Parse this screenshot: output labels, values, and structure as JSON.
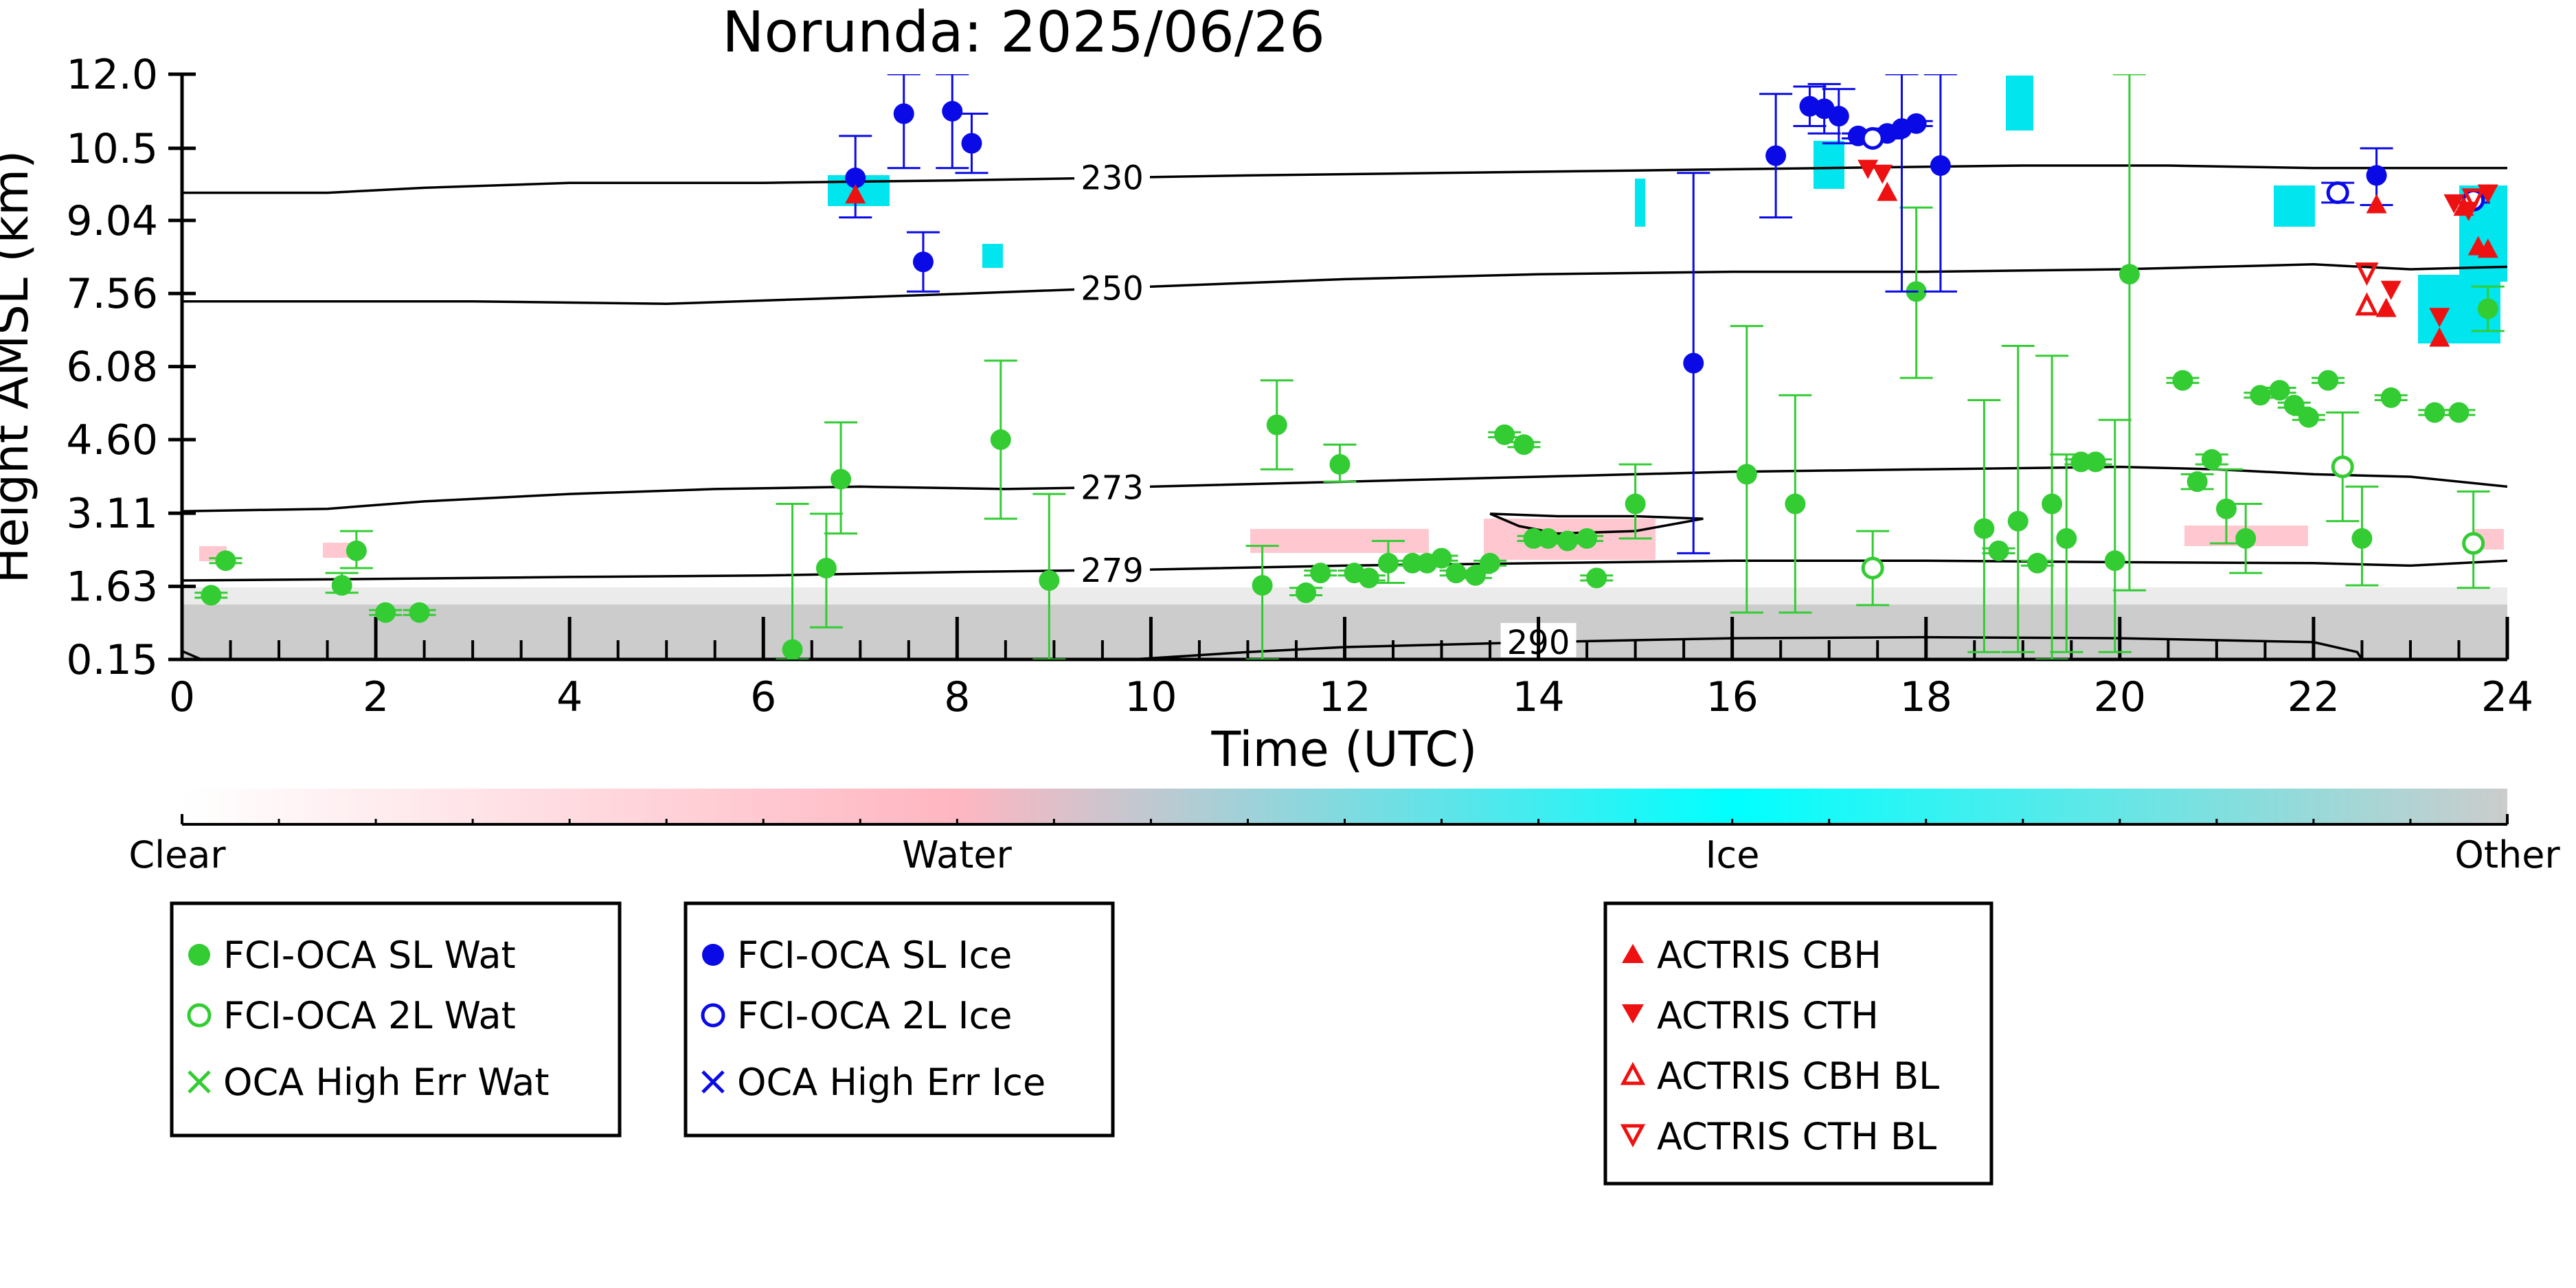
{
  "chart_data": {
    "type": "scatter",
    "title": "Norunda: 2025/06/26",
    "xlabel": "Time (UTC)",
    "ylabel": "Height AMSL (km)",
    "xlim": [
      0,
      24
    ],
    "ylim": [
      0.15,
      12.0
    ],
    "xticks": [
      "0",
      "2",
      "4",
      "6",
      "8",
      "10",
      "12",
      "14",
      "16",
      "18",
      "20",
      "22",
      "24"
    ],
    "yticks": [
      "0.15",
      "1.63",
      "3.11",
      "4.60",
      "6.08",
      "7.56",
      "9.04",
      "10.5",
      "12.0"
    ],
    "colorbar": {
      "labels": [
        "Clear",
        "Water",
        "Ice",
        "Other"
      ],
      "colors": [
        "#ffffff",
        "#ffb6c1",
        "#00ffff",
        "#cccccc"
      ]
    },
    "contours": [
      {
        "label": "230",
        "points": [
          [
            0,
            9.6
          ],
          [
            1.5,
            9.6
          ],
          [
            2.5,
            9.7
          ],
          [
            4,
            9.8
          ],
          [
            6,
            9.8
          ],
          [
            8,
            9.85
          ],
          [
            9.5,
            9.9
          ],
          [
            11,
            9.95
          ],
          [
            13,
            10.0
          ],
          [
            15,
            10.05
          ],
          [
            17,
            10.1
          ],
          [
            19,
            10.15
          ],
          [
            20.5,
            10.15
          ],
          [
            22,
            10.1
          ],
          [
            24,
            10.1
          ]
        ]
      },
      {
        "label": "250",
        "points": [
          [
            0,
            7.4
          ],
          [
            3,
            7.4
          ],
          [
            5,
            7.35
          ],
          [
            6.5,
            7.45
          ],
          [
            8,
            7.55
          ],
          [
            10,
            7.7
          ],
          [
            12,
            7.85
          ],
          [
            14,
            7.95
          ],
          [
            16,
            8.0
          ],
          [
            18,
            8.0
          ],
          [
            20,
            8.05
          ],
          [
            21,
            8.1
          ],
          [
            22,
            8.15
          ],
          [
            23,
            8.05
          ],
          [
            24,
            8.1
          ]
        ]
      },
      {
        "label": "273",
        "points": [
          [
            0,
            3.15
          ],
          [
            1.5,
            3.2
          ],
          [
            2.5,
            3.35
          ],
          [
            4,
            3.5
          ],
          [
            5.5,
            3.6
          ],
          [
            7,
            3.65
          ],
          [
            8.5,
            3.6
          ],
          [
            10,
            3.65
          ],
          [
            12,
            3.75
          ],
          [
            14,
            3.85
          ],
          [
            16,
            3.95
          ],
          [
            18,
            4.0
          ],
          [
            20,
            4.05
          ],
          [
            21,
            4.0
          ],
          [
            22,
            3.9
          ],
          [
            23,
            3.85
          ],
          [
            24,
            3.65
          ]
        ]
      },
      {
        "label": "279",
        "points": [
          [
            0,
            1.75
          ],
          [
            2,
            1.78
          ],
          [
            4,
            1.82
          ],
          [
            6,
            1.85
          ],
          [
            8,
            1.92
          ],
          [
            10,
            1.97
          ],
          [
            12,
            2.05
          ],
          [
            14,
            2.1
          ],
          [
            16,
            2.15
          ],
          [
            18,
            2.15
          ],
          [
            20,
            2.12
          ],
          [
            22,
            2.1
          ],
          [
            23,
            2.05
          ],
          [
            24,
            2.15
          ]
        ]
      },
      {
        "label": "290",
        "points": [
          [
            0,
            0.32
          ],
          [
            0.2,
            0.15
          ],
          [
            9.8,
            0.15
          ],
          [
            11,
            0.3
          ],
          [
            12,
            0.4
          ],
          [
            14,
            0.5
          ],
          [
            16,
            0.58
          ],
          [
            18,
            0.6
          ],
          [
            20,
            0.58
          ],
          [
            22,
            0.5
          ],
          [
            22.45,
            0.3
          ],
          [
            22.5,
            0.15
          ]
        ]
      },
      {
        "label": "",
        "points": [
          [
            13.5,
            3.1
          ],
          [
            14.2,
            3.05
          ],
          [
            15,
            3.05
          ],
          [
            15.7,
            3.0
          ],
          [
            15,
            2.75
          ],
          [
            14.2,
            2.7
          ],
          [
            13.8,
            2.85
          ],
          [
            13.5,
            3.1
          ]
        ]
      }
    ],
    "series": [
      {
        "name": "FCI-OCA SL Wat",
        "color": "#33cc33",
        "marker": "filled-circle",
        "points": [
          {
            "x": 0.3,
            "y": 1.45,
            "ylo": 1.4,
            "yhi": 1.5
          },
          {
            "x": 0.45,
            "y": 2.15,
            "ylo": 2.1,
            "yhi": 2.2
          },
          {
            "x": 1.65,
            "y": 1.65,
            "ylo": 1.5,
            "yhi": 1.9
          },
          {
            "x": 1.8,
            "y": 2.35,
            "ylo": 2.0,
            "yhi": 2.75
          },
          {
            "x": 2.1,
            "y": 1.1,
            "ylo": 1.05,
            "yhi": 1.15
          },
          {
            "x": 2.45,
            "y": 1.1,
            "ylo": 1.05,
            "yhi": 1.15
          },
          {
            "x": 6.3,
            "y": 0.35,
            "ylo": 0.15,
            "yhi": 3.3
          },
          {
            "x": 6.65,
            "y": 2.0,
            "ylo": 0.8,
            "yhi": 3.1
          },
          {
            "x": 6.8,
            "y": 3.8,
            "ylo": 2.7,
            "yhi": 4.95
          },
          {
            "x": 8.45,
            "y": 4.6,
            "ylo": 3.0,
            "yhi": 6.2
          },
          {
            "x": 8.95,
            "y": 1.75,
            "ylo": 0.15,
            "yhi": 3.5
          },
          {
            "x": 11.15,
            "y": 1.65,
            "ylo": 0.15,
            "yhi": 2.45
          },
          {
            "x": 11.3,
            "y": 4.9,
            "ylo": 4.0,
            "yhi": 5.8
          },
          {
            "x": 11.6,
            "y": 1.5,
            "ylo": 1.45,
            "yhi": 1.6
          },
          {
            "x": 11.75,
            "y": 1.9,
            "ylo": 1.85,
            "yhi": 1.95
          },
          {
            "x": 11.95,
            "y": 4.1,
            "ylo": 3.75,
            "yhi": 4.5
          },
          {
            "x": 12.1,
            "y": 1.9,
            "ylo": 1.85,
            "yhi": 1.95
          },
          {
            "x": 12.25,
            "y": 1.8,
            "ylo": 1.75,
            "yhi": 1.85
          },
          {
            "x": 12.45,
            "y": 2.1,
            "ylo": 1.7,
            "yhi": 2.55
          },
          {
            "x": 12.7,
            "y": 2.1,
            "ylo": 2.05,
            "yhi": 2.15
          },
          {
            "x": 12.85,
            "y": 2.1,
            "ylo": 2.05,
            "yhi": 2.15
          },
          {
            "x": 13.0,
            "y": 2.2,
            "ylo": 2.15,
            "yhi": 2.25
          },
          {
            "x": 13.15,
            "y": 1.9,
            "ylo": 1.85,
            "yhi": 1.95
          },
          {
            "x": 13.35,
            "y": 1.85,
            "ylo": 1.8,
            "yhi": 1.9
          },
          {
            "x": 13.5,
            "y": 2.1,
            "ylo": 2.05,
            "yhi": 2.15
          },
          {
            "x": 13.65,
            "y": 4.7,
            "ylo": 4.65,
            "yhi": 4.75
          },
          {
            "x": 13.85,
            "y": 4.5,
            "ylo": 4.45,
            "yhi": 4.55
          },
          {
            "x": 13.95,
            "y": 2.6,
            "ylo": 2.55,
            "yhi": 2.65
          },
          {
            "x": 14.1,
            "y": 2.6,
            "ylo": 2.55,
            "yhi": 2.65
          },
          {
            "x": 14.3,
            "y": 2.55,
            "ylo": 2.5,
            "yhi": 2.6
          },
          {
            "x": 14.5,
            "y": 2.6,
            "ylo": 2.55,
            "yhi": 2.65
          },
          {
            "x": 14.6,
            "y": 1.8,
            "ylo": 1.75,
            "yhi": 1.85
          },
          {
            "x": 15.0,
            "y": 3.3,
            "ylo": 2.6,
            "yhi": 4.1
          },
          {
            "x": 16.15,
            "y": 3.9,
            "ylo": 1.1,
            "yhi": 6.9
          },
          {
            "x": 16.65,
            "y": 3.3,
            "ylo": 1.1,
            "yhi": 5.5
          },
          {
            "x": 17.9,
            "y": 7.6,
            "ylo": 5.85,
            "yhi": 9.3
          },
          {
            "x": 18.6,
            "y": 2.8,
            "ylo": 0.3,
            "yhi": 5.4
          },
          {
            "x": 18.75,
            "y": 2.35,
            "ylo": 2.3,
            "yhi": 2.4
          },
          {
            "x": 18.95,
            "y": 2.95,
            "ylo": 0.3,
            "yhi": 6.5
          },
          {
            "x": 19.15,
            "y": 2.1,
            "ylo": 2.05,
            "yhi": 2.15
          },
          {
            "x": 19.3,
            "y": 3.3,
            "ylo": 0.15,
            "yhi": 6.3
          },
          {
            "x": 19.45,
            "y": 2.6,
            "ylo": 0.3,
            "yhi": 4.3
          },
          {
            "x": 19.6,
            "y": 4.15,
            "ylo": 4.1,
            "yhi": 4.2
          },
          {
            "x": 19.75,
            "y": 4.15,
            "ylo": 4.1,
            "yhi": 4.2
          },
          {
            "x": 19.95,
            "y": 2.15,
            "ylo": 0.3,
            "yhi": 5.0
          },
          {
            "x": 20.1,
            "y": 7.95,
            "ylo": 1.55,
            "yhi": 12.0
          },
          {
            "x": 20.65,
            "y": 5.8,
            "ylo": 5.75,
            "yhi": 5.85
          },
          {
            "x": 20.8,
            "y": 3.75,
            "ylo": 3.6,
            "yhi": 3.9
          },
          {
            "x": 20.95,
            "y": 4.2,
            "ylo": 4.1,
            "yhi": 4.3
          },
          {
            "x": 21.1,
            "y": 3.2,
            "ylo": 2.5,
            "yhi": 4.0
          },
          {
            "x": 21.3,
            "y": 2.6,
            "ylo": 1.9,
            "yhi": 3.3
          },
          {
            "x": 21.45,
            "y": 5.5,
            "ylo": 5.45,
            "yhi": 5.55
          },
          {
            "x": 21.65,
            "y": 5.6,
            "ylo": 5.55,
            "yhi": 5.65
          },
          {
            "x": 21.8,
            "y": 5.3,
            "ylo": 5.25,
            "yhi": 5.35
          },
          {
            "x": 21.95,
            "y": 5.05,
            "ylo": 5.0,
            "yhi": 5.1
          },
          {
            "x": 22.15,
            "y": 5.8,
            "ylo": 5.75,
            "yhi": 5.85
          },
          {
            "x": 22.5,
            "y": 2.6,
            "ylo": 1.65,
            "yhi": 3.65
          },
          {
            "x": 22.8,
            "y": 5.45,
            "ylo": 5.4,
            "yhi": 5.5
          },
          {
            "x": 23.25,
            "y": 5.15,
            "ylo": 5.1,
            "yhi": 5.2
          },
          {
            "x": 23.5,
            "y": 5.15,
            "ylo": 5.1,
            "yhi": 5.2
          },
          {
            "x": 23.8,
            "y": 7.25,
            "ylo": 6.8,
            "yhi": 7.7
          }
        ]
      },
      {
        "name": "FCI-OCA 2L Wat",
        "color": "#33cc33",
        "marker": "open-circle",
        "points": [
          {
            "x": 17.45,
            "y": 2.0,
            "ylo": 1.25,
            "yhi": 2.75
          },
          {
            "x": 22.3,
            "y": 4.05,
            "ylo": 2.95,
            "yhi": 5.15
          },
          {
            "x": 23.65,
            "y": 2.5,
            "ylo": 1.6,
            "yhi": 3.55
          }
        ]
      },
      {
        "name": "OCA High Err Wat",
        "color": "#33cc33",
        "marker": "x",
        "points": []
      },
      {
        "name": "FCI-OCA SL Ice",
        "color": "#0a0ae6",
        "marker": "filled-circle",
        "points": [
          {
            "x": 6.95,
            "y": 9.9,
            "ylo": 9.1,
            "yhi": 10.75
          },
          {
            "x": 7.45,
            "y": 11.2,
            "ylo": 10.1,
            "yhi": 12.0
          },
          {
            "x": 7.65,
            "y": 8.2,
            "ylo": 7.6,
            "yhi": 8.8
          },
          {
            "x": 7.95,
            "y": 11.25,
            "ylo": 10.1,
            "yhi": 12.0
          },
          {
            "x": 8.15,
            "y": 10.6,
            "ylo": 10.0,
            "yhi": 11.2
          },
          {
            "x": 15.6,
            "y": 6.15,
            "ylo": 2.3,
            "yhi": 10.0
          },
          {
            "x": 16.45,
            "y": 10.35,
            "ylo": 9.1,
            "yhi": 11.6
          },
          {
            "x": 16.8,
            "y": 11.35,
            "ylo": 10.95,
            "yhi": 11.75
          },
          {
            "x": 16.95,
            "y": 11.3,
            "ylo": 10.8,
            "yhi": 11.8
          },
          {
            "x": 17.1,
            "y": 11.15,
            "ylo": 10.6,
            "yhi": 11.7
          },
          {
            "x": 17.3,
            "y": 10.75,
            "ylo": 10.7,
            "yhi": 10.8
          },
          {
            "x": 17.6,
            "y": 10.8,
            "ylo": 10.7,
            "yhi": 10.9
          },
          {
            "x": 17.75,
            "y": 10.9,
            "ylo": 7.6,
            "yhi": 12.0
          },
          {
            "x": 17.9,
            "y": 11.0,
            "ylo": 10.95,
            "yhi": 11.05
          },
          {
            "x": 18.15,
            "y": 10.15,
            "ylo": 7.6,
            "yhi": 12.0
          },
          {
            "x": 22.65,
            "y": 9.95,
            "ylo": 9.35,
            "yhi": 10.5
          }
        ]
      },
      {
        "name": "FCI-OCA 2L Ice",
        "color": "#0a0ae6",
        "marker": "open-circle",
        "points": [
          {
            "x": 17.45,
            "y": 10.7,
            "ylo": 10.65,
            "yhi": 10.75
          },
          {
            "x": 22.25,
            "y": 9.6,
            "ylo": 9.4,
            "yhi": 9.8
          },
          {
            "x": 23.65,
            "y": 9.45,
            "ylo": 9.4,
            "yhi": 9.5
          }
        ]
      },
      {
        "name": "OCA High Err Ice",
        "color": "#0a0ae6",
        "marker": "x",
        "points": []
      },
      {
        "name": "ACTRIS CBH",
        "color": "#ee1111",
        "marker": "filled-triangle-up",
        "points": [
          {
            "x": 6.95,
            "y": 9.55
          },
          {
            "x": 17.6,
            "y": 9.6
          },
          {
            "x": 22.65,
            "y": 9.35
          },
          {
            "x": 22.75,
            "y": 7.25
          },
          {
            "x": 23.3,
            "y": 6.65
          },
          {
            "x": 23.55,
            "y": 9.3
          },
          {
            "x": 23.7,
            "y": 8.5
          },
          {
            "x": 23.8,
            "y": 8.45
          }
        ]
      },
      {
        "name": "ACTRIS CTH",
        "color": "#ee1111",
        "marker": "filled-triangle-down",
        "points": [
          {
            "x": 17.4,
            "y": 10.1
          },
          {
            "x": 17.55,
            "y": 10.0
          },
          {
            "x": 22.8,
            "y": 7.65
          },
          {
            "x": 23.3,
            "y": 7.1
          },
          {
            "x": 23.45,
            "y": 9.4
          },
          {
            "x": 23.6,
            "y": 9.25
          },
          {
            "x": 23.8,
            "y": 9.6
          }
        ]
      },
      {
        "name": "ACTRIS CBH BL",
        "color": "#ee1111",
        "marker": "open-triangle-up",
        "points": [
          {
            "x": 22.55,
            "y": 7.3
          }
        ]
      },
      {
        "name": "ACTRIS CTH BL",
        "color": "#ee1111",
        "marker": "open-triangle-down",
        "points": [
          {
            "x": 22.55,
            "y": 8.0
          },
          {
            "x": 23.65,
            "y": 9.5
          }
        ]
      }
    ],
    "legends": [
      {
        "entries": [
          "FCI-OCA SL Wat",
          "FCI-OCA 2L Wat",
          "OCA High Err Wat"
        ]
      },
      {
        "entries": [
          "FCI-OCA SL Ice",
          "FCI-OCA 2L Ice",
          "OCA High Err Ice"
        ]
      },
      {
        "entries": [
          "ACTRIS CBH",
          "ACTRIS CTH",
          "ACTRIS CBH BL",
          "ACTRIS CTH BL"
        ]
      }
    ]
  }
}
